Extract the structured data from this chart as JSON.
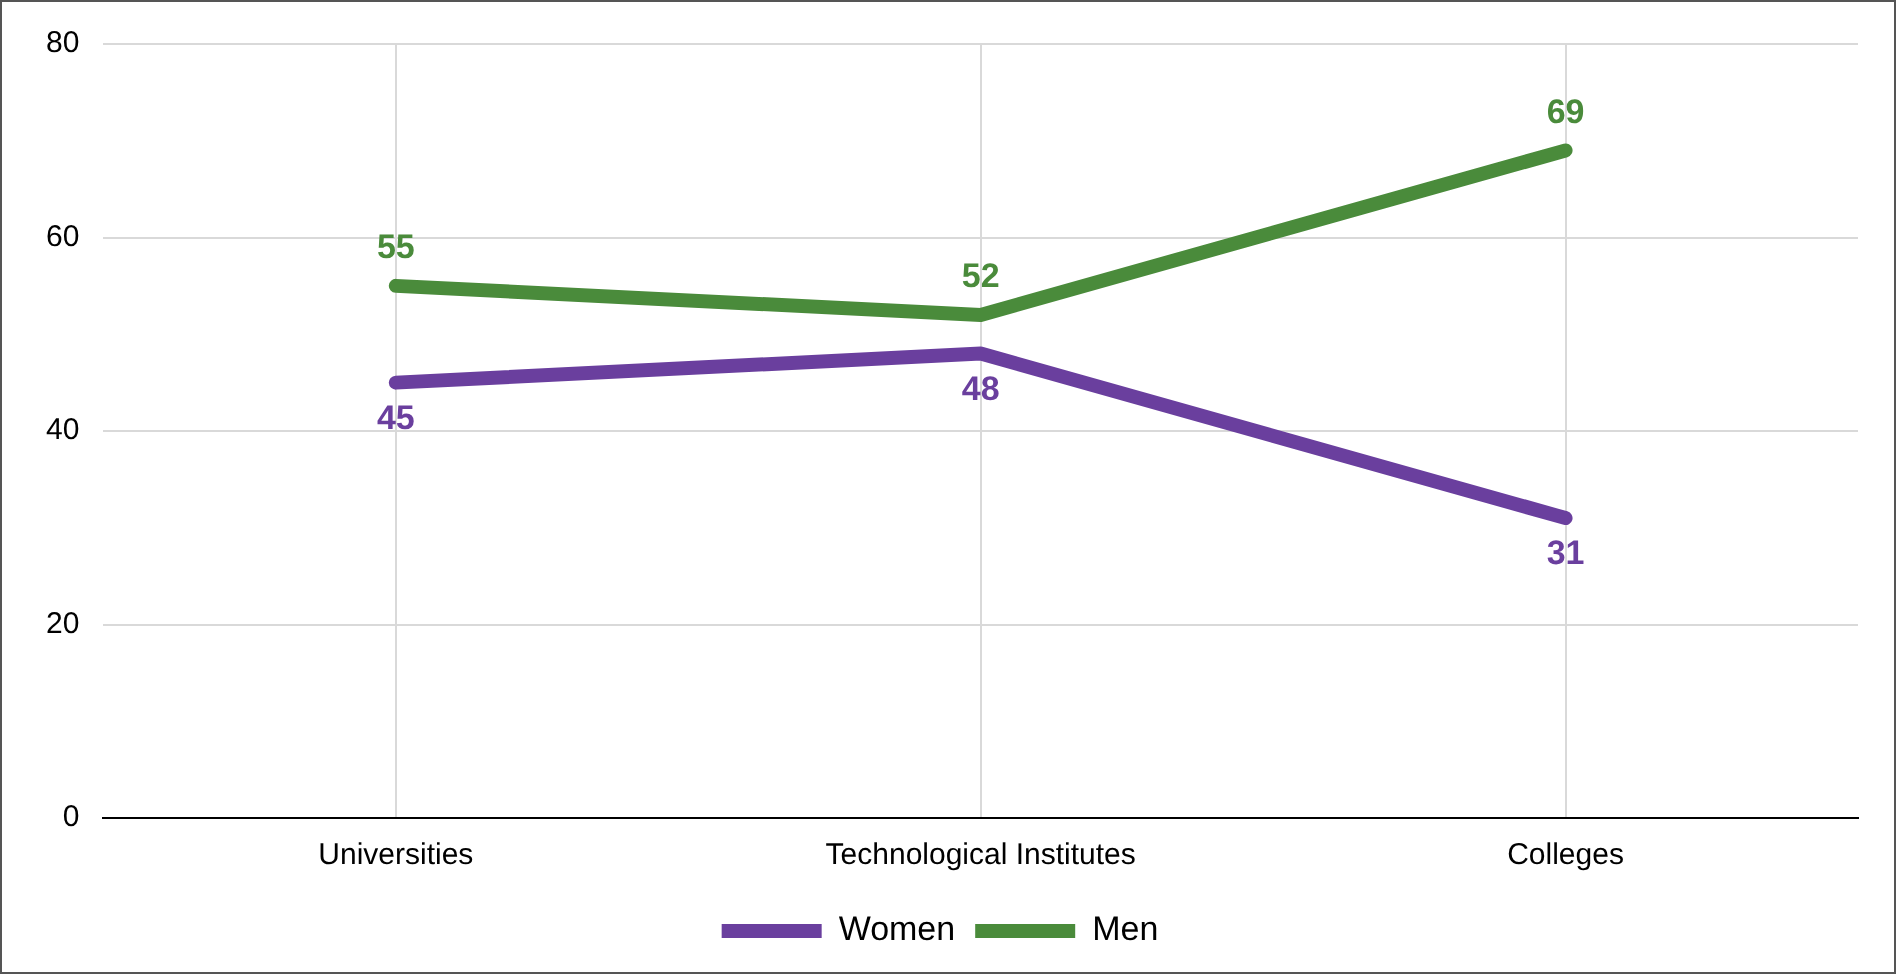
{
  "chart_data": {
    "type": "line",
    "categories": [
      "Universities",
      "Technological Institutes",
      "Colleges"
    ],
    "series": [
      {
        "name": "Women",
        "color": "#6a3f9e",
        "values": [
          45,
          48,
          31
        ]
      },
      {
        "name": "Men",
        "color": "#4a8b3b",
        "values": [
          55,
          52,
          69
        ]
      }
    ],
    "ylim": [
      0,
      80
    ],
    "yticks": [
      0,
      20,
      40,
      60,
      80
    ],
    "grid": true,
    "legend": "bottom",
    "data_labels": true,
    "marker": "none",
    "line_style": "solid"
  }
}
